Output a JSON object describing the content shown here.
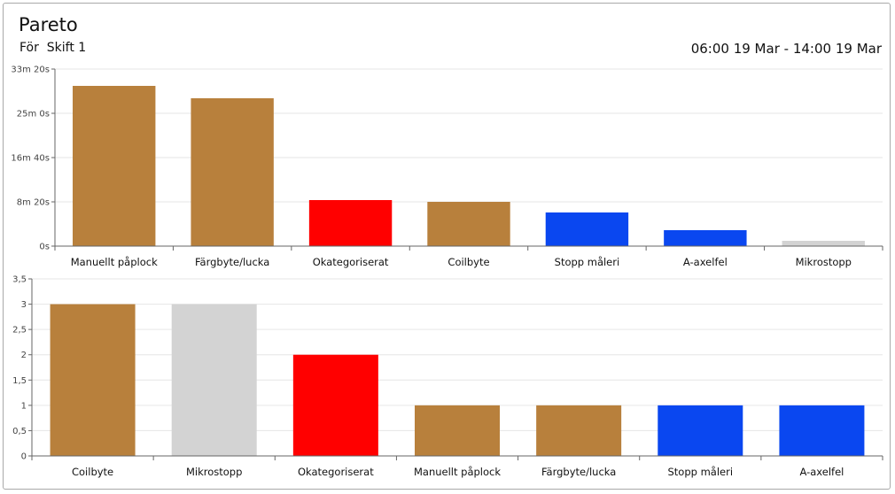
{
  "header": {
    "title": "Pareto",
    "subtitle_prefix": "För",
    "subtitle_shift": "Skift 1",
    "range_from": "06:00 19 Mar",
    "range_sep": "-",
    "range_to": "14:00 19 Mar"
  },
  "chart_data": [
    {
      "type": "bar",
      "categories": [
        "Manuellt påplock",
        "Färgbyte/lucka",
        "Okategoriserat",
        "Coilbyte",
        "Stopp måleri",
        "A-axelfel",
        "Mikrostopp"
      ],
      "values": [
        1810,
        1670,
        520,
        500,
        380,
        180,
        60
      ],
      "colors": [
        "#B8803C",
        "#B8803C",
        "#FF0000",
        "#B8803C",
        "#0A47F0",
        "#0A47F0",
        "#D3D3D3"
      ],
      "yticks": [
        0,
        500,
        1000,
        1500,
        2000
      ],
      "ytick_labels": [
        "0s",
        "8m 20s",
        "16m 40s",
        "25m 0s",
        "33m 20s"
      ],
      "ylim": [
        0,
        2000
      ],
      "grid": true
    },
    {
      "type": "bar",
      "categories": [
        "Coilbyte",
        "Mikrostopp",
        "Okategoriserat",
        "Manuellt påplock",
        "Färgbyte/lucka",
        "Stopp måleri",
        "A-axelfel"
      ],
      "values": [
        3,
        3,
        2,
        1,
        1,
        1,
        1
      ],
      "colors": [
        "#B8803C",
        "#D3D3D3",
        "#FF0000",
        "#B8803C",
        "#B8803C",
        "#0A47F0",
        "#0A47F0"
      ],
      "yticks": [
        0,
        0.5,
        1,
        1.5,
        2,
        2.5,
        3,
        3.5
      ],
      "ytick_labels": [
        "0",
        "0,5",
        "1",
        "1,5",
        "2",
        "2,5",
        "3",
        "3,5"
      ],
      "ylim": [
        0,
        3.5
      ],
      "grid": true
    }
  ]
}
